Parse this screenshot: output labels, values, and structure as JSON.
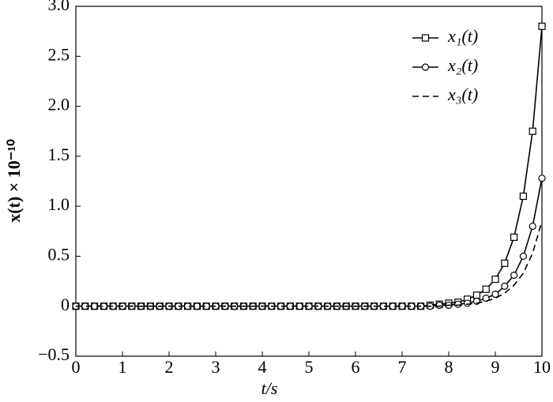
{
  "chart_data": {
    "type": "line",
    "x_label": "t/s",
    "y_label": "x(t) × 10⁻¹⁰",
    "x": [
      0,
      0.2,
      0.4,
      0.6,
      0.8,
      1,
      1.2,
      1.4,
      1.6,
      1.8,
      2,
      2.2,
      2.4,
      2.6,
      2.8,
      3,
      3.2,
      3.4,
      3.6,
      3.8,
      4,
      4.2,
      4.4,
      4.6,
      4.8,
      5,
      5.2,
      5.4,
      5.6,
      5.8,
      6,
      6.2,
      6.4,
      6.6,
      6.8,
      7,
      7.2,
      7.4,
      7.6,
      7.8,
      8,
      8.2,
      8.4,
      8.6,
      8.8,
      9,
      9.2,
      9.4,
      9.6,
      9.8,
      10
    ],
    "series": [
      {
        "name": "x₁(t)",
        "color": "#000000",
        "marker": "square",
        "dashed": false,
        "values": [
          0,
          0,
          0,
          0,
          0,
          0,
          0,
          0,
          0,
          0,
          0,
          0,
          0,
          0,
          0,
          0,
          0,
          0,
          0,
          0,
          0,
          0,
          0,
          0,
          0,
          0,
          0,
          0,
          0,
          0,
          0,
          0,
          0,
          0,
          0,
          0,
          0,
          0,
          0.01,
          0.02,
          0.03,
          0.04,
          0.07,
          0.11,
          0.17,
          0.27,
          0.43,
          0.69,
          1.1,
          1.75,
          2.8
        ]
      },
      {
        "name": "x₂(t)",
        "color": "#000000",
        "marker": "circle",
        "dashed": false,
        "values": [
          0,
          0,
          0,
          0,
          0,
          0,
          0,
          0,
          0,
          0,
          0,
          0,
          0,
          0,
          0,
          0,
          0,
          0,
          0,
          0,
          0,
          0,
          0,
          0,
          0,
          0,
          0,
          0,
          0,
          0,
          0,
          0,
          0,
          0,
          0,
          0,
          0,
          0,
          0,
          0.01,
          0.01,
          0.02,
          0.03,
          0.05,
          0.08,
          0.12,
          0.2,
          0.31,
          0.5,
          0.8,
          1.28
        ]
      },
      {
        "name": "x₃(t)",
        "color": "#000000",
        "marker": "none",
        "dashed": true,
        "values": [
          0,
          0,
          0,
          0,
          0,
          0,
          0,
          0,
          0,
          0,
          0,
          0,
          0,
          0,
          0,
          0,
          0,
          0,
          0,
          0,
          0,
          0,
          0,
          0,
          0,
          0,
          0,
          0,
          0,
          0,
          0,
          0,
          0,
          0,
          0,
          0,
          0,
          0,
          0,
          0,
          0.01,
          0.01,
          0.02,
          0.03,
          0.05,
          0.08,
          0.13,
          0.21,
          0.33,
          0.53,
          0.85
        ]
      }
    ],
    "xlim": [
      0,
      10
    ],
    "xticks": [
      0,
      1,
      2,
      3,
      4,
      5,
      6,
      7,
      8,
      9,
      10
    ],
    "ylim": [
      -0.5,
      3.0
    ],
    "yticks": [
      {
        "value": -0.5,
        "label": "−0.5"
      },
      0,
      0.5,
      {
        "value": 1.0,
        "label": "1.0"
      },
      1.5,
      {
        "value": 2.0,
        "label": "2.0"
      },
      2.5,
      {
        "value": 3.0,
        "label": "3.0"
      }
    ],
    "grid": false,
    "legend": "upper right"
  }
}
